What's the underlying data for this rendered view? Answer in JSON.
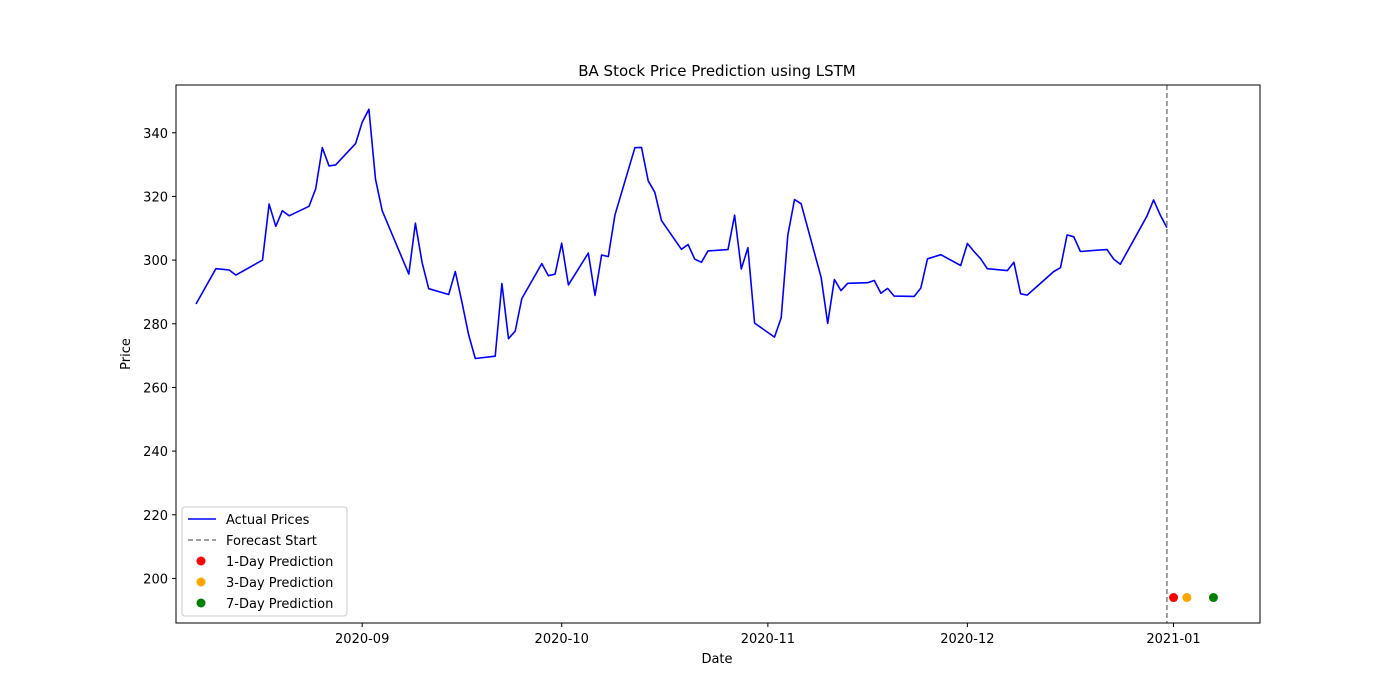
{
  "chart_data": {
    "type": "line",
    "title": "BA Stock Price Prediction using LSTM",
    "xlabel": "Date",
    "ylabel": "Price",
    "x_ticks": [
      "2020-09",
      "2020-10",
      "2020-11",
      "2020-12",
      "2021-01"
    ],
    "y_ticks": [
      200,
      220,
      240,
      260,
      280,
      300,
      320,
      340
    ],
    "xlim": [
      "2020-08-04",
      "2021-01-14"
    ],
    "ylim": [
      186,
      355
    ],
    "legend_position": "lower-left",
    "grid": false,
    "series": [
      {
        "name": "Actual Prices",
        "color": "#0000ff",
        "style": "solid",
        "points": [
          [
            "2020-08-07",
            286.2
          ],
          [
            "2020-08-10",
            297.3
          ],
          [
            "2020-08-11",
            297.1
          ],
          [
            "2020-08-12",
            296.9
          ],
          [
            "2020-08-13",
            295.3
          ],
          [
            "2020-08-17",
            300.0
          ],
          [
            "2020-08-18",
            317.6
          ],
          [
            "2020-08-19",
            310.6
          ],
          [
            "2020-08-20",
            315.5
          ],
          [
            "2020-08-21",
            313.9
          ],
          [
            "2020-08-24",
            316.9
          ],
          [
            "2020-08-25",
            322.4
          ],
          [
            "2020-08-26",
            335.3
          ],
          [
            "2020-08-27",
            329.6
          ],
          [
            "2020-08-28",
            329.9
          ],
          [
            "2020-08-31",
            336.6
          ],
          [
            "2020-09-01",
            343.3
          ],
          [
            "2020-09-02",
            347.4
          ],
          [
            "2020-09-03",
            325.4
          ],
          [
            "2020-09-04",
            315.5
          ],
          [
            "2020-09-08",
            295.6
          ],
          [
            "2020-09-09",
            311.6
          ],
          [
            "2020-09-10",
            299.2
          ],
          [
            "2020-09-11",
            291.0
          ],
          [
            "2020-09-14",
            289.2
          ],
          [
            "2020-09-15",
            296.4
          ],
          [
            "2020-09-16",
            286.7
          ],
          [
            "2020-09-17",
            276.6
          ],
          [
            "2020-09-18",
            269.1
          ],
          [
            "2020-09-21",
            269.8
          ],
          [
            "2020-09-22",
            292.6
          ],
          [
            "2020-09-23",
            275.3
          ],
          [
            "2020-09-24",
            277.7
          ],
          [
            "2020-09-25",
            287.9
          ],
          [
            "2020-09-28",
            298.9
          ],
          [
            "2020-09-29",
            295.1
          ],
          [
            "2020-09-30",
            295.6
          ],
          [
            "2020-10-01",
            305.3
          ],
          [
            "2020-10-02",
            292.2
          ],
          [
            "2020-10-05",
            302.2
          ],
          [
            "2020-10-06",
            288.9
          ],
          [
            "2020-10-07",
            301.6
          ],
          [
            "2020-10-08",
            301.1
          ],
          [
            "2020-10-09",
            314.1
          ],
          [
            "2020-10-12",
            335.3
          ],
          [
            "2020-10-13",
            335.4
          ],
          [
            "2020-10-14",
            324.9
          ],
          [
            "2020-10-15",
            321.3
          ],
          [
            "2020-10-16",
            312.4
          ],
          [
            "2020-10-19",
            303.4
          ],
          [
            "2020-10-20",
            304.9
          ],
          [
            "2020-10-21",
            300.3
          ],
          [
            "2020-10-22",
            299.3
          ],
          [
            "2020-10-23",
            302.9
          ],
          [
            "2020-10-26",
            303.3
          ],
          [
            "2020-10-27",
            314.1
          ],
          [
            "2020-10-28",
            297.2
          ],
          [
            "2020-10-29",
            303.9
          ],
          [
            "2020-10-30",
            280.2
          ],
          [
            "2020-11-02",
            275.8
          ],
          [
            "2020-11-03",
            281.9
          ],
          [
            "2020-11-04",
            307.8
          ],
          [
            "2020-11-05",
            319.0
          ],
          [
            "2020-11-06",
            317.7
          ],
          [
            "2020-11-09",
            294.6
          ],
          [
            "2020-11-10",
            280.1
          ],
          [
            "2020-11-11",
            293.9
          ],
          [
            "2020-11-12",
            290.4
          ],
          [
            "2020-11-13",
            292.7
          ],
          [
            "2020-11-16",
            292.9
          ],
          [
            "2020-11-17",
            293.6
          ],
          [
            "2020-11-18",
            289.6
          ],
          [
            "2020-11-19",
            291.1
          ],
          [
            "2020-11-20",
            288.7
          ],
          [
            "2020-11-23",
            288.6
          ],
          [
            "2020-11-24",
            291.2
          ],
          [
            "2020-11-25",
            300.4
          ],
          [
            "2020-11-27",
            301.7
          ],
          [
            "2020-11-30",
            298.3
          ],
          [
            "2020-12-01",
            305.2
          ],
          [
            "2020-12-02",
            302.7
          ],
          [
            "2020-12-03",
            300.4
          ],
          [
            "2020-12-04",
            297.3
          ],
          [
            "2020-12-07",
            296.7
          ],
          [
            "2020-12-08",
            299.3
          ],
          [
            "2020-12-09",
            289.4
          ],
          [
            "2020-12-10",
            289.0
          ],
          [
            "2020-12-14",
            296.4
          ],
          [
            "2020-12-15",
            297.6
          ],
          [
            "2020-12-16",
            307.9
          ],
          [
            "2020-12-17",
            307.3
          ],
          [
            "2020-12-18",
            302.7
          ],
          [
            "2020-12-21",
            303.2
          ],
          [
            "2020-12-22",
            303.3
          ],
          [
            "2020-12-23",
            300.3
          ],
          [
            "2020-12-24",
            298.7
          ],
          [
            "2020-12-28",
            313.8
          ],
          [
            "2020-12-29",
            318.9
          ],
          [
            "2020-12-30",
            314.2
          ],
          [
            "2020-12-31",
            310.2
          ]
        ]
      }
    ],
    "forecast_start": {
      "name": "Forecast Start",
      "date": "2020-12-31",
      "color": "#808080",
      "style": "dashed"
    },
    "predictions": [
      {
        "name": "1-Day Prediction",
        "date": "2021-01-01",
        "value": 194.0,
        "color": "#ff0000"
      },
      {
        "name": "3-Day Prediction",
        "date": "2021-01-03",
        "value": 194.0,
        "color": "#ffa500"
      },
      {
        "name": "7-Day Prediction",
        "date": "2021-01-07",
        "value": 194.0,
        "color": "#008000"
      }
    ]
  }
}
